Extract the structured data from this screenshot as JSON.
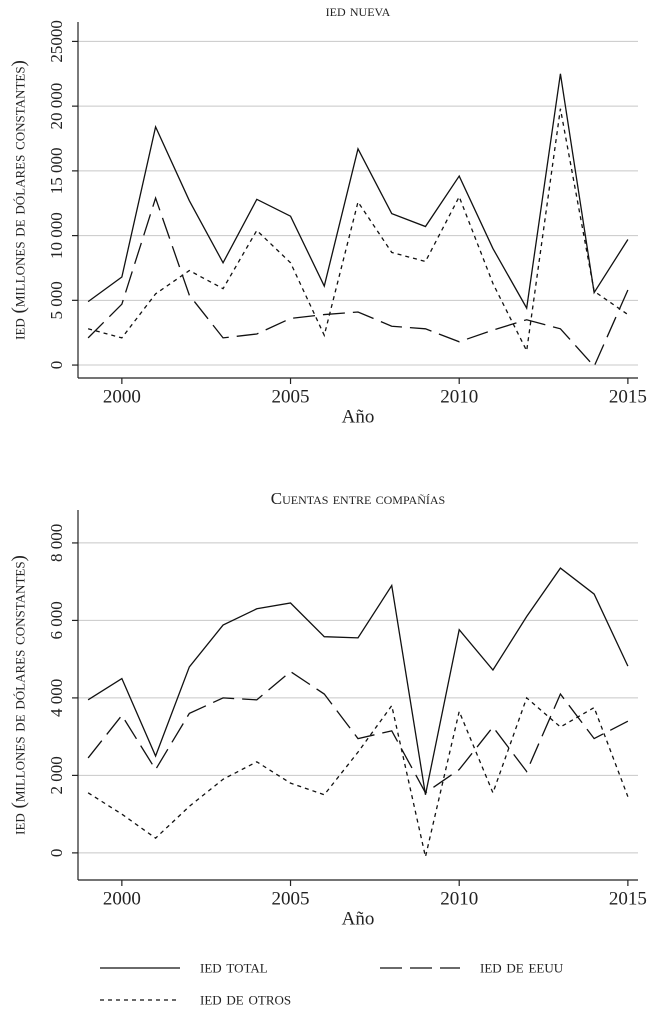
{
  "chart_data": [
    {
      "type": "line",
      "title": "ied nueva",
      "xlabel": "Año",
      "ylabel": "ied (millones de dólares constantes)",
      "x": [
        1999,
        2000,
        2001,
        2002,
        2003,
        2004,
        2005,
        2006,
        2007,
        2008,
        2009,
        2010,
        2011,
        2012,
        2013,
        2014,
        2015
      ],
      "xlim": [
        1998.7,
        2015.3
      ],
      "xticks": [
        2000,
        2005,
        2010,
        2015
      ],
      "ylim": [
        -1000,
        26500
      ],
      "yticks": [
        0,
        {
          "value": 5000,
          "label": "5 000"
        },
        {
          "value": 10000,
          "label": "10 000"
        },
        {
          "value": 15000,
          "label": "15 000"
        },
        {
          "value": 20000,
          "label": "20 000"
        },
        25000
      ],
      "grid": true,
      "series": [
        {
          "name": "ied total",
          "color": "#111111",
          "dash": "solid",
          "values": [
            4900,
            6800,
            18400,
            12700,
            7900,
            12800,
            11500,
            6100,
            16700,
            11700,
            10700,
            14600,
            9000,
            4400,
            22500,
            5600,
            9700
          ]
        },
        {
          "name": "ied de eeuu",
          "color": "#111111",
          "dash": "long",
          "values": [
            2100,
            4700,
            12900,
            5400,
            2100,
            2400,
            3600,
            3900,
            4100,
            3000,
            2800,
            1800,
            2700,
            3500,
            2800,
            -100,
            5800
          ]
        },
        {
          "name": "ied de otros",
          "color": "#111111",
          "dash": "short",
          "values": [
            2800,
            2100,
            5500,
            7300,
            5900,
            10400,
            7900,
            2300,
            12600,
            8700,
            8000,
            13000,
            6300,
            1100,
            19800,
            5700,
            3900
          ]
        }
      ]
    },
    {
      "type": "line",
      "title": "Cuentas entre compañías",
      "xlabel": "Año",
      "ylabel": "ied (millones de dólares constantes)",
      "x": [
        1999,
        2000,
        2001,
        2002,
        2003,
        2004,
        2005,
        2006,
        2007,
        2008,
        2009,
        2010,
        2011,
        2012,
        2013,
        2014,
        2015
      ],
      "xlim": [
        1998.7,
        2015.3
      ],
      "xticks": [
        2000,
        2005,
        2010,
        2015
      ],
      "ylim": [
        -700,
        8850
      ],
      "yticks": [
        0,
        {
          "value": 2000,
          "label": "2 000"
        },
        {
          "value": 4000,
          "label": "4 000"
        },
        {
          "value": 6000,
          "label": "6 000"
        },
        {
          "value": 8000,
          "label": "8 000"
        }
      ],
      "grid": true,
      "series": [
        {
          "color": "#111111",
          "dash": "solid",
          "values": [
            3950,
            4500,
            2500,
            4800,
            5880,
            6300,
            6450,
            5580,
            5550,
            6900,
            1500,
            5760,
            4720,
            6100,
            7350,
            6680,
            4820
          ]
        },
        {
          "color": "#111111",
          "dash": "long",
          "values": [
            2450,
            3550,
            2150,
            3600,
            4000,
            3950,
            4680,
            4100,
            2950,
            3150,
            1550,
            2150,
            3250,
            2100,
            4100,
            2950,
            3400
          ]
        },
        {
          "color": "#111111",
          "dash": "short",
          "values": [
            1550,
            1000,
            380,
            1200,
            1900,
            2350,
            1800,
            1500,
            2600,
            3800,
            -100,
            3650,
            1550,
            4000,
            3250,
            3750,
            1450
          ]
        }
      ]
    }
  ]
}
